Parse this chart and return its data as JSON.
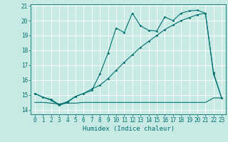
{
  "xlabel": "Humidex (Indice chaleur)",
  "bg_color": "#c8eae4",
  "grid_color": "#ffffff",
  "line_color": "#007070",
  "xlim": [
    -0.5,
    23.5
  ],
  "ylim": [
    13.7,
    21.1
  ],
  "yticks": [
    14,
    15,
    16,
    17,
    18,
    19,
    20,
    21
  ],
  "xticks": [
    0,
    1,
    2,
    3,
    4,
    5,
    6,
    7,
    8,
    9,
    10,
    11,
    12,
    13,
    14,
    15,
    16,
    17,
    18,
    19,
    20,
    21,
    22,
    23
  ],
  "series1_x": [
    0,
    1,
    2,
    3,
    4,
    5,
    6,
    7,
    8,
    9,
    10,
    11,
    12,
    13,
    14,
    15,
    16,
    17,
    18,
    19,
    20,
    21,
    22,
    23
  ],
  "series1_y": [
    15.1,
    14.85,
    14.65,
    14.3,
    14.5,
    14.9,
    15.1,
    15.3,
    16.4,
    17.8,
    19.5,
    19.2,
    20.5,
    19.65,
    19.35,
    19.3,
    20.25,
    20.0,
    20.5,
    20.65,
    20.7,
    20.5,
    16.5,
    14.8
  ],
  "series2_x": [
    0,
    1,
    2,
    3,
    4,
    5,
    6,
    7,
    8,
    9,
    10,
    11,
    12,
    13,
    14,
    15,
    16,
    17,
    18,
    19,
    20,
    21,
    22,
    23
  ],
  "series2_y": [
    15.1,
    14.85,
    14.7,
    14.35,
    14.55,
    14.9,
    15.1,
    15.4,
    15.65,
    16.1,
    16.65,
    17.2,
    17.7,
    18.2,
    18.6,
    19.0,
    19.4,
    19.7,
    20.0,
    20.2,
    20.4,
    20.5,
    16.4,
    14.8
  ],
  "series3_x": [
    0,
    1,
    2,
    3,
    4,
    5,
    6,
    7,
    8,
    9,
    10,
    11,
    12,
    13,
    14,
    15,
    16,
    17,
    18,
    19,
    20,
    21,
    22,
    23
  ],
  "series3_y": [
    14.5,
    14.5,
    14.45,
    14.4,
    14.45,
    14.45,
    14.5,
    14.5,
    14.5,
    14.5,
    14.5,
    14.5,
    14.5,
    14.5,
    14.5,
    14.5,
    14.5,
    14.5,
    14.5,
    14.5,
    14.5,
    14.5,
    14.8,
    14.8
  ]
}
